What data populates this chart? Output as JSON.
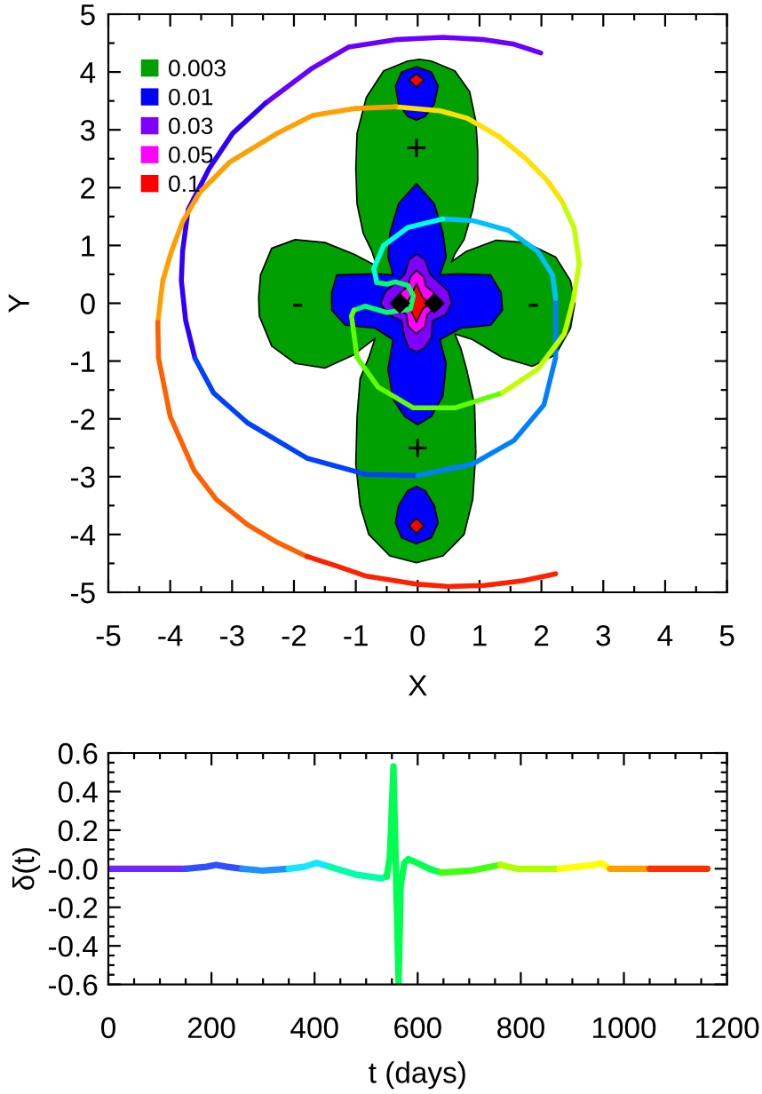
{
  "chart_data": [
    {
      "type": "line",
      "xlabel": "X",
      "ylabel": "Y",
      "xlim": [
        -5,
        5
      ],
      "ylim": [
        -5,
        5
      ],
      "xticks": [
        -5,
        {
          "value": -4.5,
          "label": null
        },
        -4,
        {
          "value": -3.5,
          "label": null
        },
        -3,
        {
          "value": -2.5,
          "label": null
        },
        -2,
        {
          "value": -1.5,
          "label": null
        },
        -1,
        {
          "value": -0.5,
          "label": null
        },
        0,
        {
          "value": 0.5,
          "label": null
        },
        1,
        {
          "value": 1.5,
          "label": null
        },
        2,
        {
          "value": 2.5,
          "label": null
        },
        3,
        {
          "value": 3.5,
          "label": null
        },
        4,
        {
          "value": 4.5,
          "label": null
        },
        5
      ],
      "yticks": [
        -5,
        {
          "value": -4.5,
          "label": null
        },
        -4,
        {
          "value": -3.5,
          "label": null
        },
        -3,
        {
          "value": -2.5,
          "label": null
        },
        -2,
        {
          "value": -1.5,
          "label": null
        },
        -1,
        {
          "value": -0.5,
          "label": null
        },
        0,
        {
          "value": 0.5,
          "label": null
        },
        1,
        {
          "value": 1.5,
          "label": null
        },
        2,
        {
          "value": 2.5,
          "label": null
        },
        3,
        {
          "value": 3.5,
          "label": null
        },
        4,
        {
          "value": 4.5,
          "label": null
        },
        5
      ],
      "legend": "top left",
      "annotations": [
        "+",
        "+",
        "-",
        "-"
      ],
      "series": [
        {
          "name": "0.003",
          "type": "area",
          "color": "#00a000",
          "x": [
            -0.16,
            0.03,
            0.22,
            0.6,
            0.84,
            0.94,
            0.97,
            0.97,
            0.89,
            0.75,
            0.6,
            0.55,
            0.79,
            1.27,
            1.75,
            2.23,
            2.47,
            2.54,
            2.47,
            2.23,
            1.85,
            1.37,
            0.89,
            0.6,
            0.7,
            0.79,
            0.92,
            0.94,
            0.89,
            0.75,
            0.41,
            -0.02,
            -0.45,
            -0.79,
            -0.93,
            -1.0,
            -0.98,
            -0.93,
            -0.79,
            -0.69,
            -1.03,
            -1.5,
            -1.98,
            -2.36,
            -2.56,
            -2.57,
            -2.54,
            -2.36,
            -1.98,
            -1.5,
            -1.03,
            -0.66,
            -0.74,
            -0.88,
            -0.98,
            -1.0,
            -0.98,
            -0.83,
            -0.55
          ],
          "values": [
            4.19,
            4.22,
            4.19,
            4.02,
            3.66,
            3.15,
            2.64,
            2.1,
            1.62,
            1.1,
            0.85,
            0.72,
            0.9,
            1.09,
            1.05,
            0.8,
            0.39,
            0,
            -0.43,
            -0.89,
            -1.09,
            -0.94,
            -0.63,
            -0.53,
            -0.79,
            -1.14,
            -1.76,
            -2.58,
            -3.39,
            -4.0,
            -4.37,
            -4.49,
            -4.37,
            -4.0,
            -3.5,
            -2.78,
            -1.96,
            -1.3,
            -0.94,
            -0.61,
            -0.89,
            -1.12,
            -1.04,
            -0.74,
            -0.22,
            0.1,
            0.49,
            0.95,
            1.1,
            1.05,
            0.85,
            0.64,
            0.9,
            1.21,
            1.72,
            2.33,
            2.94,
            3.56,
            4.02
          ]
        },
        {
          "name": "0.01",
          "type": "area",
          "color": "#0000ff",
          "x": [
            -0.02,
            0.27,
            0.41,
            0.46,
            0.36,
            0.65,
            1.18,
            1.35,
            1.37,
            1.18,
            0.7,
            0.36,
            0.46,
            0.41,
            0.22,
            0,
            -0.21,
            -0.4,
            -0.48,
            -0.4,
            -0.69,
            -1.17,
            -1.39,
            -1.39,
            -1.31,
            -0.69,
            -0.4,
            -0.48,
            -0.45,
            -0.31,
            null,
            -0.02,
            0.22,
            0.33,
            0.27,
            0.12,
            -0.02,
            -0.16,
            -0.31,
            -0.36,
            -0.26,
            null,
            -0.02,
            0.12,
            0.27,
            0.33,
            0.22,
            -0.02,
            -0.26,
            -0.36,
            -0.31,
            -0.16
          ],
          "values": [
            2.07,
            1.72,
            1.21,
            0.8,
            0.49,
            0.51,
            0.49,
            0.18,
            -0.12,
            -0.38,
            -0.43,
            -0.63,
            -1.04,
            -1.6,
            -1.96,
            -2.1,
            -1.96,
            -1.66,
            -1.14,
            -0.63,
            -0.43,
            -0.38,
            -0.12,
            0.18,
            0.49,
            0.51,
            0.49,
            0.8,
            1.21,
            1.72,
            null,
            4.09,
            4.0,
            3.76,
            3.45,
            3.23,
            3.17,
            3.23,
            3.45,
            3.76,
            4.0,
            null,
            -3.17,
            -3.24,
            -3.5,
            -3.8,
            -4.06,
            -4.16,
            -4.06,
            -3.8,
            -3.5,
            -3.24
          ]
        },
        {
          "name": "0.03",
          "type": "area",
          "color": "#8000ff",
          "x": [
            -0.02,
            0.12,
            0.2,
            0.32,
            0.5,
            0.55,
            0.45,
            0.24,
            0.22,
            0.1,
            -0.02,
            -0.14,
            -0.21,
            -0.26,
            -0.48,
            -0.6,
            -0.52,
            -0.33,
            -0.21,
            -0.14
          ],
          "values": [
            0.85,
            0.75,
            0.5,
            0.38,
            0.2,
            0,
            -0.2,
            -0.3,
            -0.6,
            -0.78,
            -0.84,
            -0.78,
            -0.6,
            -0.3,
            -0.2,
            0,
            0.2,
            0.38,
            0.5,
            0.75
          ]
        },
        {
          "name": "0.05",
          "type": "area",
          "color": "#ff00ff",
          "x": [
            -0.02,
            0.1,
            0.13,
            0.29,
            0.3,
            0.15,
            0.12,
            -0.02,
            -0.15,
            -0.18,
            -0.33,
            -0.31,
            -0.15,
            -0.12
          ],
          "values": [
            0.57,
            0.45,
            0.3,
            0.15,
            -0.05,
            -0.2,
            -0.4,
            -0.53,
            -0.4,
            -0.2,
            -0.05,
            0.15,
            0.3,
            0.45
          ]
        },
        {
          "name": "0.1",
          "type": "area",
          "color": "#ff0000",
          "x": [
            -0.02,
            0.08,
            0.19,
            0.08,
            -0.02,
            -0.12,
            -0.2,
            -0.12,
            null,
            -0.02,
            0.1,
            -0.02,
            -0.14,
            null,
            -0.02,
            0.1,
            -0.02,
            -0.14
          ],
          "values": [
            0.34,
            0.1,
            0,
            -0.1,
            -0.33,
            -0.1,
            0,
            0.1,
            null,
            3.97,
            3.86,
            3.74,
            3.86,
            null,
            -3.72,
            -3.85,
            -3.98,
            -3.85
          ]
        },
        {
          "color": "#6a00ff",
          "x": [
            1.99,
            1.56,
            1.08,
            0.41,
            -0.36,
            -1.12,
            -1.7,
            -2.46
          ],
          "values": [
            4.33,
            4.48,
            4.56,
            4.6,
            4.56,
            4.43,
            4.07,
            3.46
          ]
        },
        {
          "color": "#3000ff",
          "x": [
            -2.46,
            -2.99,
            -3.37,
            -3.71,
            -3.8,
            -3.82,
            -3.75,
            -3.6
          ],
          "values": [
            3.46,
            2.94,
            2.33,
            1.62,
            0.9,
            0.39,
            -0.3,
            -0.95
          ]
        },
        {
          "color": "#0040ff",
          "x": [
            -3.6,
            -3.3,
            -2.75,
            -1.79,
            -0.83,
            0
          ],
          "values": [
            -0.95,
            -1.55,
            -2.07,
            -2.68,
            -2.96,
            -2.98
          ]
        },
        {
          "color": "#0080ff",
          "x": [
            0,
            0.89,
            1.56,
            2.04,
            2.23,
            2.23
          ],
          "values": [
            -2.98,
            -2.78,
            -2.37,
            -1.76,
            -0.94,
            0.08
          ]
        },
        {
          "color": "#00c0ff",
          "x": [
            2.23,
            2.18,
            1.94,
            1.47,
            0.89,
            0.41
          ],
          "values": [
            0.08,
            0.49,
            0.9,
            1.26,
            1.43,
            1.46
          ]
        },
        {
          "color": "#00ffe0",
          "x": [
            0.41,
            -0.16,
            -0.55,
            -0.71,
            -0.66
          ],
          "values": [
            1.46,
            1.31,
            1.0,
            0.6,
            0.36
          ]
        },
        {
          "color": "#00ff60",
          "x": [
            -0.66,
            -0.5,
            -0.36,
            -0.16,
            -0.07,
            -0.12,
            -0.5,
            -0.85,
            -1.03
          ],
          "values": [
            0.36,
            0.33,
            0.37,
            0.31,
            0.13,
            -0.1,
            -0.16,
            -0.05,
            -0.12
          ]
        },
        {
          "color": "#60ff00",
          "x": [
            -1.03,
            -1.07,
            -0.98,
            -0.64,
            -0.07,
            0.6,
            1.37
          ],
          "values": [
            -0.12,
            -0.22,
            -0.94,
            -1.45,
            -1.81,
            -1.81,
            -1.55
          ]
        },
        {
          "color": "#c0ff00",
          "x": [
            1.37,
            1.94,
            2.37,
            2.52,
            2.61,
            2.53,
            2.34
          ],
          "values": [
            -1.55,
            -1.14,
            -0.53,
            0.08,
            0.7,
            1.3,
            1.75
          ]
        },
        {
          "color": "#ffe000",
          "x": [
            2.34,
            2.09,
            1.75,
            1.32,
            0.8,
            0.36,
            -0.36
          ],
          "values": [
            1.75,
            2.13,
            2.5,
            2.88,
            3.2,
            3.33,
            3.4
          ]
        },
        {
          "color": "#ffa000",
          "x": [
            -0.36,
            -1.0,
            -1.7,
            -2.27,
            -3.04,
            -3.52,
            -3.8,
            -3.98,
            -4.12,
            -4.2
          ],
          "values": [
            3.4,
            3.37,
            3.25,
            2.94,
            2.44,
            1.92,
            1.41,
            0.9,
            0.39,
            -0.33
          ]
        },
        {
          "color": "#ff6000",
          "x": [
            -4.2,
            -4.19,
            -4.0,
            -3.61,
            -3.25,
            -2.75,
            -2.3,
            -1.79
          ],
          "values": [
            -0.33,
            -0.94,
            -1.96,
            -2.9,
            -3.4,
            -3.83,
            -4.12,
            -4.38
          ]
        },
        {
          "color": "#ff2000",
          "x": [
            -1.79,
            -1.3,
            -0.83,
            0,
            0.5,
            1.08,
            1.7,
            2.23
          ],
          "values": [
            -4.38,
            -4.55,
            -4.72,
            -4.86,
            -4.9,
            -4.88,
            -4.8,
            -4.68
          ]
        },
        {
          "type": "scatter",
          "marker": "diamond",
          "color": "#000000",
          "x": [
            -0.29,
            0.27
          ],
          "values": [
            0,
            0
          ]
        }
      ]
    },
    {
      "type": "line",
      "xlabel": "t (days)",
      "ylabel": "δ(t)",
      "xlim": [
        0,
        1200
      ],
      "ylim": [
        -0.6,
        0.6
      ],
      "xticks": [
        0,
        {
          "value": 50,
          "label": null
        },
        {
          "value": 100,
          "label": null
        },
        {
          "value": 150,
          "label": null
        },
        200,
        {
          "value": 250,
          "label": null
        },
        {
          "value": 300,
          "label": null
        },
        {
          "value": 350,
          "label": null
        },
        400,
        {
          "value": 450,
          "label": null
        },
        {
          "value": 500,
          "label": null
        },
        {
          "value": 550,
          "label": null
        },
        600,
        {
          "value": 650,
          "label": null
        },
        {
          "value": 700,
          "label": null
        },
        {
          "value": 750,
          "label": null
        },
        800,
        {
          "value": 850,
          "label": null
        },
        {
          "value": 900,
          "label": null
        },
        {
          "value": 950,
          "label": null
        },
        1000,
        {
          "value": 1050,
          "label": null
        },
        {
          "value": 1100,
          "label": null
        },
        {
          "value": 1150,
          "label": null
        },
        1200
      ],
      "yticks": [
        0.6,
        {
          "value": 0.55,
          "label": null
        },
        {
          "value": 0.5,
          "label": null
        },
        {
          "value": 0.45,
          "label": null
        },
        0.4,
        {
          "value": 0.35,
          "label": null
        },
        {
          "value": 0.3,
          "label": null
        },
        {
          "value": 0.25,
          "label": null
        },
        0.2,
        {
          "value": 0.15,
          "label": null
        },
        {
          "value": 0.1,
          "label": null
        },
        {
          "value": 0.05,
          "label": null
        },
        {
          "value": 0,
          "label": "-0.0"
        },
        {
          "value": -0.05,
          "label": null
        },
        {
          "value": -0.1,
          "label": null
        },
        {
          "value": -0.15,
          "label": null
        },
        -0.2,
        {
          "value": -0.25,
          "label": null
        },
        {
          "value": -0.3,
          "label": null
        },
        {
          "value": -0.35,
          "label": null
        },
        -0.4,
        {
          "value": -0.45,
          "label": null
        },
        {
          "value": -0.5,
          "label": null
        },
        {
          "value": -0.55,
          "label": null
        },
        -0.6
      ],
      "series": [
        {
          "color": "#7028ff",
          "x": [
            0,
            50,
            100,
            150
          ],
          "values": [
            0,
            0,
            0,
            0
          ]
        },
        {
          "color": "#3050ff",
          "x": [
            150,
            190,
            209,
            230,
            260
          ],
          "values": [
            0,
            0.01,
            0.02,
            0.01,
            0
          ]
        },
        {
          "color": "#2090ff",
          "x": [
            260,
            300,
            350
          ],
          "values": [
            0,
            -0.01,
            0
          ]
        },
        {
          "color": "#10e8ff",
          "x": [
            350,
            380,
            404,
            430
          ],
          "values": [
            0,
            0.01,
            0.03,
            0.01
          ]
        },
        {
          "color": "#00ffa8",
          "x": [
            430,
            479,
            530,
            540
          ],
          "values": [
            0.01,
            -0.03,
            -0.05,
            -0.04
          ]
        },
        {
          "color": "#00ff50",
          "x": [
            540,
            546,
            553,
            558,
            563,
            567,
            574,
            582,
            599,
            622,
            645
          ],
          "values": [
            -0.04,
            0.06,
            0.53,
            -0.03,
            -0.59,
            -0.09,
            0.03,
            0.05,
            0.03,
            0,
            -0.02
          ]
        },
        {
          "color": "#40ff10",
          "x": [
            645,
            703,
            760
          ],
          "values": [
            -0.02,
            -0.01,
            0.02
          ]
        },
        {
          "color": "#b0ff00",
          "x": [
            760,
            793,
            875
          ],
          "values": [
            0.02,
            0,
            0
          ]
        },
        {
          "color": "#ffff00",
          "x": [
            875,
            944,
            956,
            973
          ],
          "values": [
            0,
            0.02,
            0.03,
            0
          ]
        },
        {
          "color": "#ffa000",
          "x": [
            973,
            1050
          ],
          "values": [
            0,
            0
          ]
        },
        {
          "color": "#ff3000",
          "x": [
            1050,
            1162
          ],
          "values": [
            0,
            0
          ]
        }
      ]
    }
  ]
}
